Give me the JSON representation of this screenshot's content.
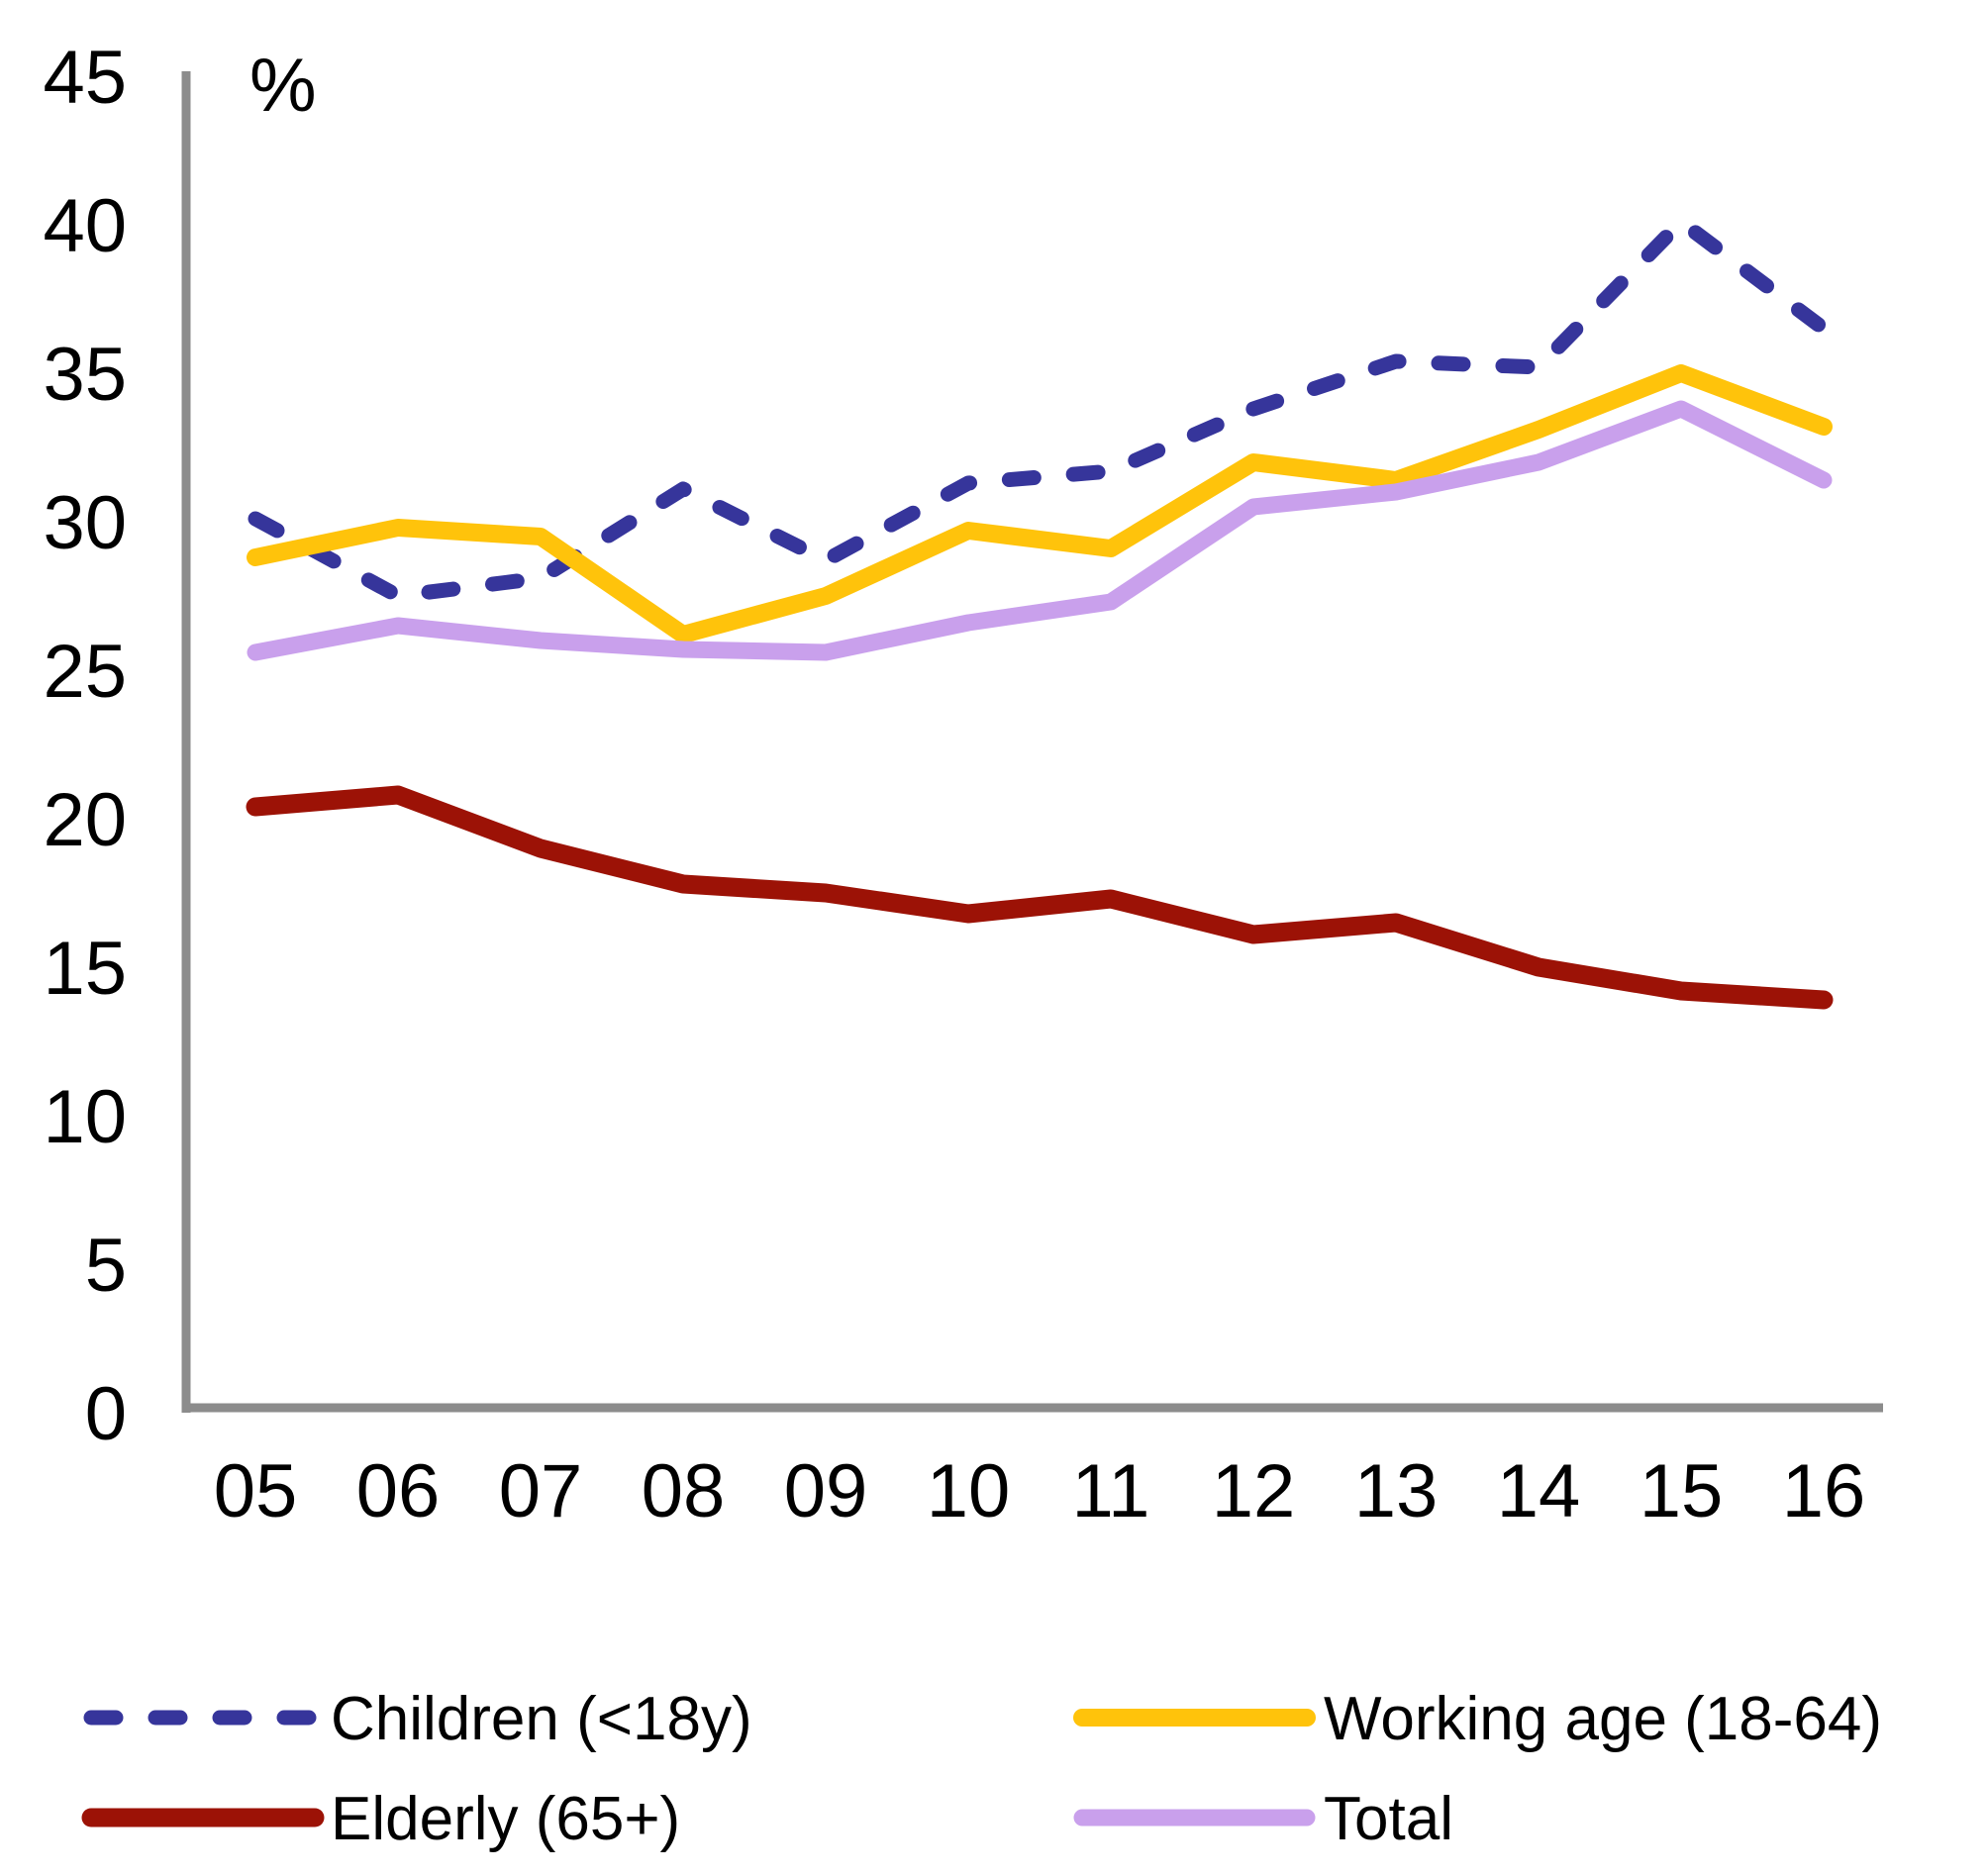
{
  "chart_data": {
    "type": "line",
    "unit_label": "%",
    "categories": [
      "05",
      "06",
      "07",
      "08",
      "09",
      "10",
      "11",
      "12",
      "13",
      "14",
      "15",
      "16"
    ],
    "y_ticks": [
      0,
      5,
      10,
      15,
      20,
      25,
      30,
      35,
      40,
      45
    ],
    "ylim": [
      0,
      45
    ],
    "grid": false,
    "legend_position": "bottom",
    "axis_color": "#8C8C8C",
    "text_color": "#000000",
    "series": [
      {
        "name": "Children (<18y)",
        "color": "#36359B",
        "style": "dashed",
        "values": [
          30.1,
          27.5,
          28.1,
          31.1,
          28.7,
          31.3,
          31.7,
          33.8,
          35.4,
          35.2,
          40.1,
          36.5
        ]
      },
      {
        "name": "Working age (18-64)",
        "color": "#FFC30B",
        "style": "solid",
        "values": [
          28.8,
          29.8,
          29.5,
          26.2,
          27.5,
          29.7,
          29.1,
          32.0,
          31.4,
          33.1,
          35.0,
          33.2
        ]
      },
      {
        "name": "Elderly (65+)",
        "color": "#9C1206",
        "style": "solid",
        "values": [
          20.4,
          20.8,
          19.0,
          17.8,
          17.5,
          16.8,
          17.3,
          16.1,
          16.5,
          15.0,
          14.2,
          13.9
        ]
      },
      {
        "name": "Total",
        "color": "#C9A0EC",
        "style": "solid",
        "values": [
          25.6,
          26.5,
          26.0,
          25.7,
          25.6,
          26.6,
          27.3,
          30.5,
          31.0,
          32.0,
          33.8,
          31.4
        ]
      }
    ],
    "legend_columns": [
      [
        0,
        2
      ],
      [
        1,
        3
      ]
    ]
  }
}
